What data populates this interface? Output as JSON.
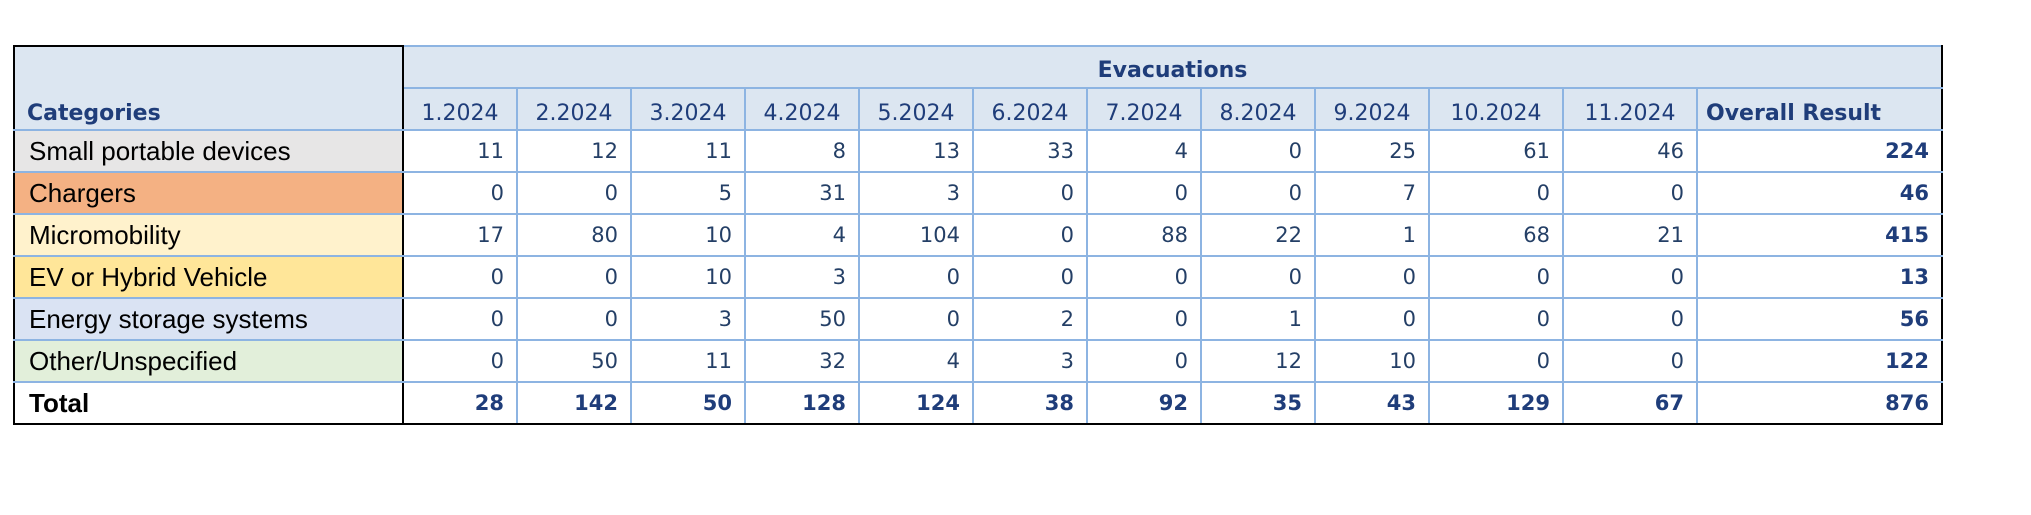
{
  "chart_data": {
    "type": "table",
    "group_header": "Evacuations",
    "row_header": "Categories",
    "columns": [
      "1.2024",
      "2.2024",
      "3.2024",
      "4.2024",
      "5.2024",
      "6.2024",
      "7.2024",
      "8.2024",
      "9.2024",
      "10.2024",
      "11.2024",
      "Overall Result"
    ],
    "rows": [
      {
        "label": "Small portable devices",
        "color": "#e7e6e6",
        "values": [
          "11",
          "12",
          "11",
          "8",
          "13",
          "33",
          "4",
          "0",
          "25",
          "61",
          "46",
          "224"
        ]
      },
      {
        "label": "Chargers",
        "color": "#f4b183",
        "values": [
          "0",
          "0",
          "5",
          "31",
          "3",
          "0",
          "0",
          "0",
          "7",
          "0",
          "0",
          "46"
        ]
      },
      {
        "label": "Micromobility",
        "color": "#fff2cc",
        "values": [
          "17",
          "80",
          "10",
          "4",
          "104",
          "0",
          "88",
          "22",
          "1",
          "68",
          "21",
          "415"
        ]
      },
      {
        "label": "EV or Hybrid Vehicle",
        "color": "#ffe699",
        "values": [
          "0",
          "0",
          "10",
          "3",
          "0",
          "0",
          "0",
          "0",
          "0",
          "0",
          "0",
          "13"
        ]
      },
      {
        "label": "Energy storage systems",
        "color": "#dae3f3",
        "values": [
          "0",
          "0",
          "3",
          "50",
          "0",
          "2",
          "0",
          "1",
          "0",
          "0",
          "0",
          "56"
        ]
      },
      {
        "label": "Other/Unspecified",
        "color": "#e2efda",
        "values": [
          "0",
          "50",
          "11",
          "32",
          "4",
          "3",
          "0",
          "12",
          "10",
          "0",
          "0",
          "122"
        ]
      }
    ],
    "total": {
      "label": "Total",
      "values": [
        "28",
        "142",
        "50",
        "128",
        "124",
        "38",
        "92",
        "35",
        "43",
        "129",
        "67",
        "876"
      ]
    }
  }
}
